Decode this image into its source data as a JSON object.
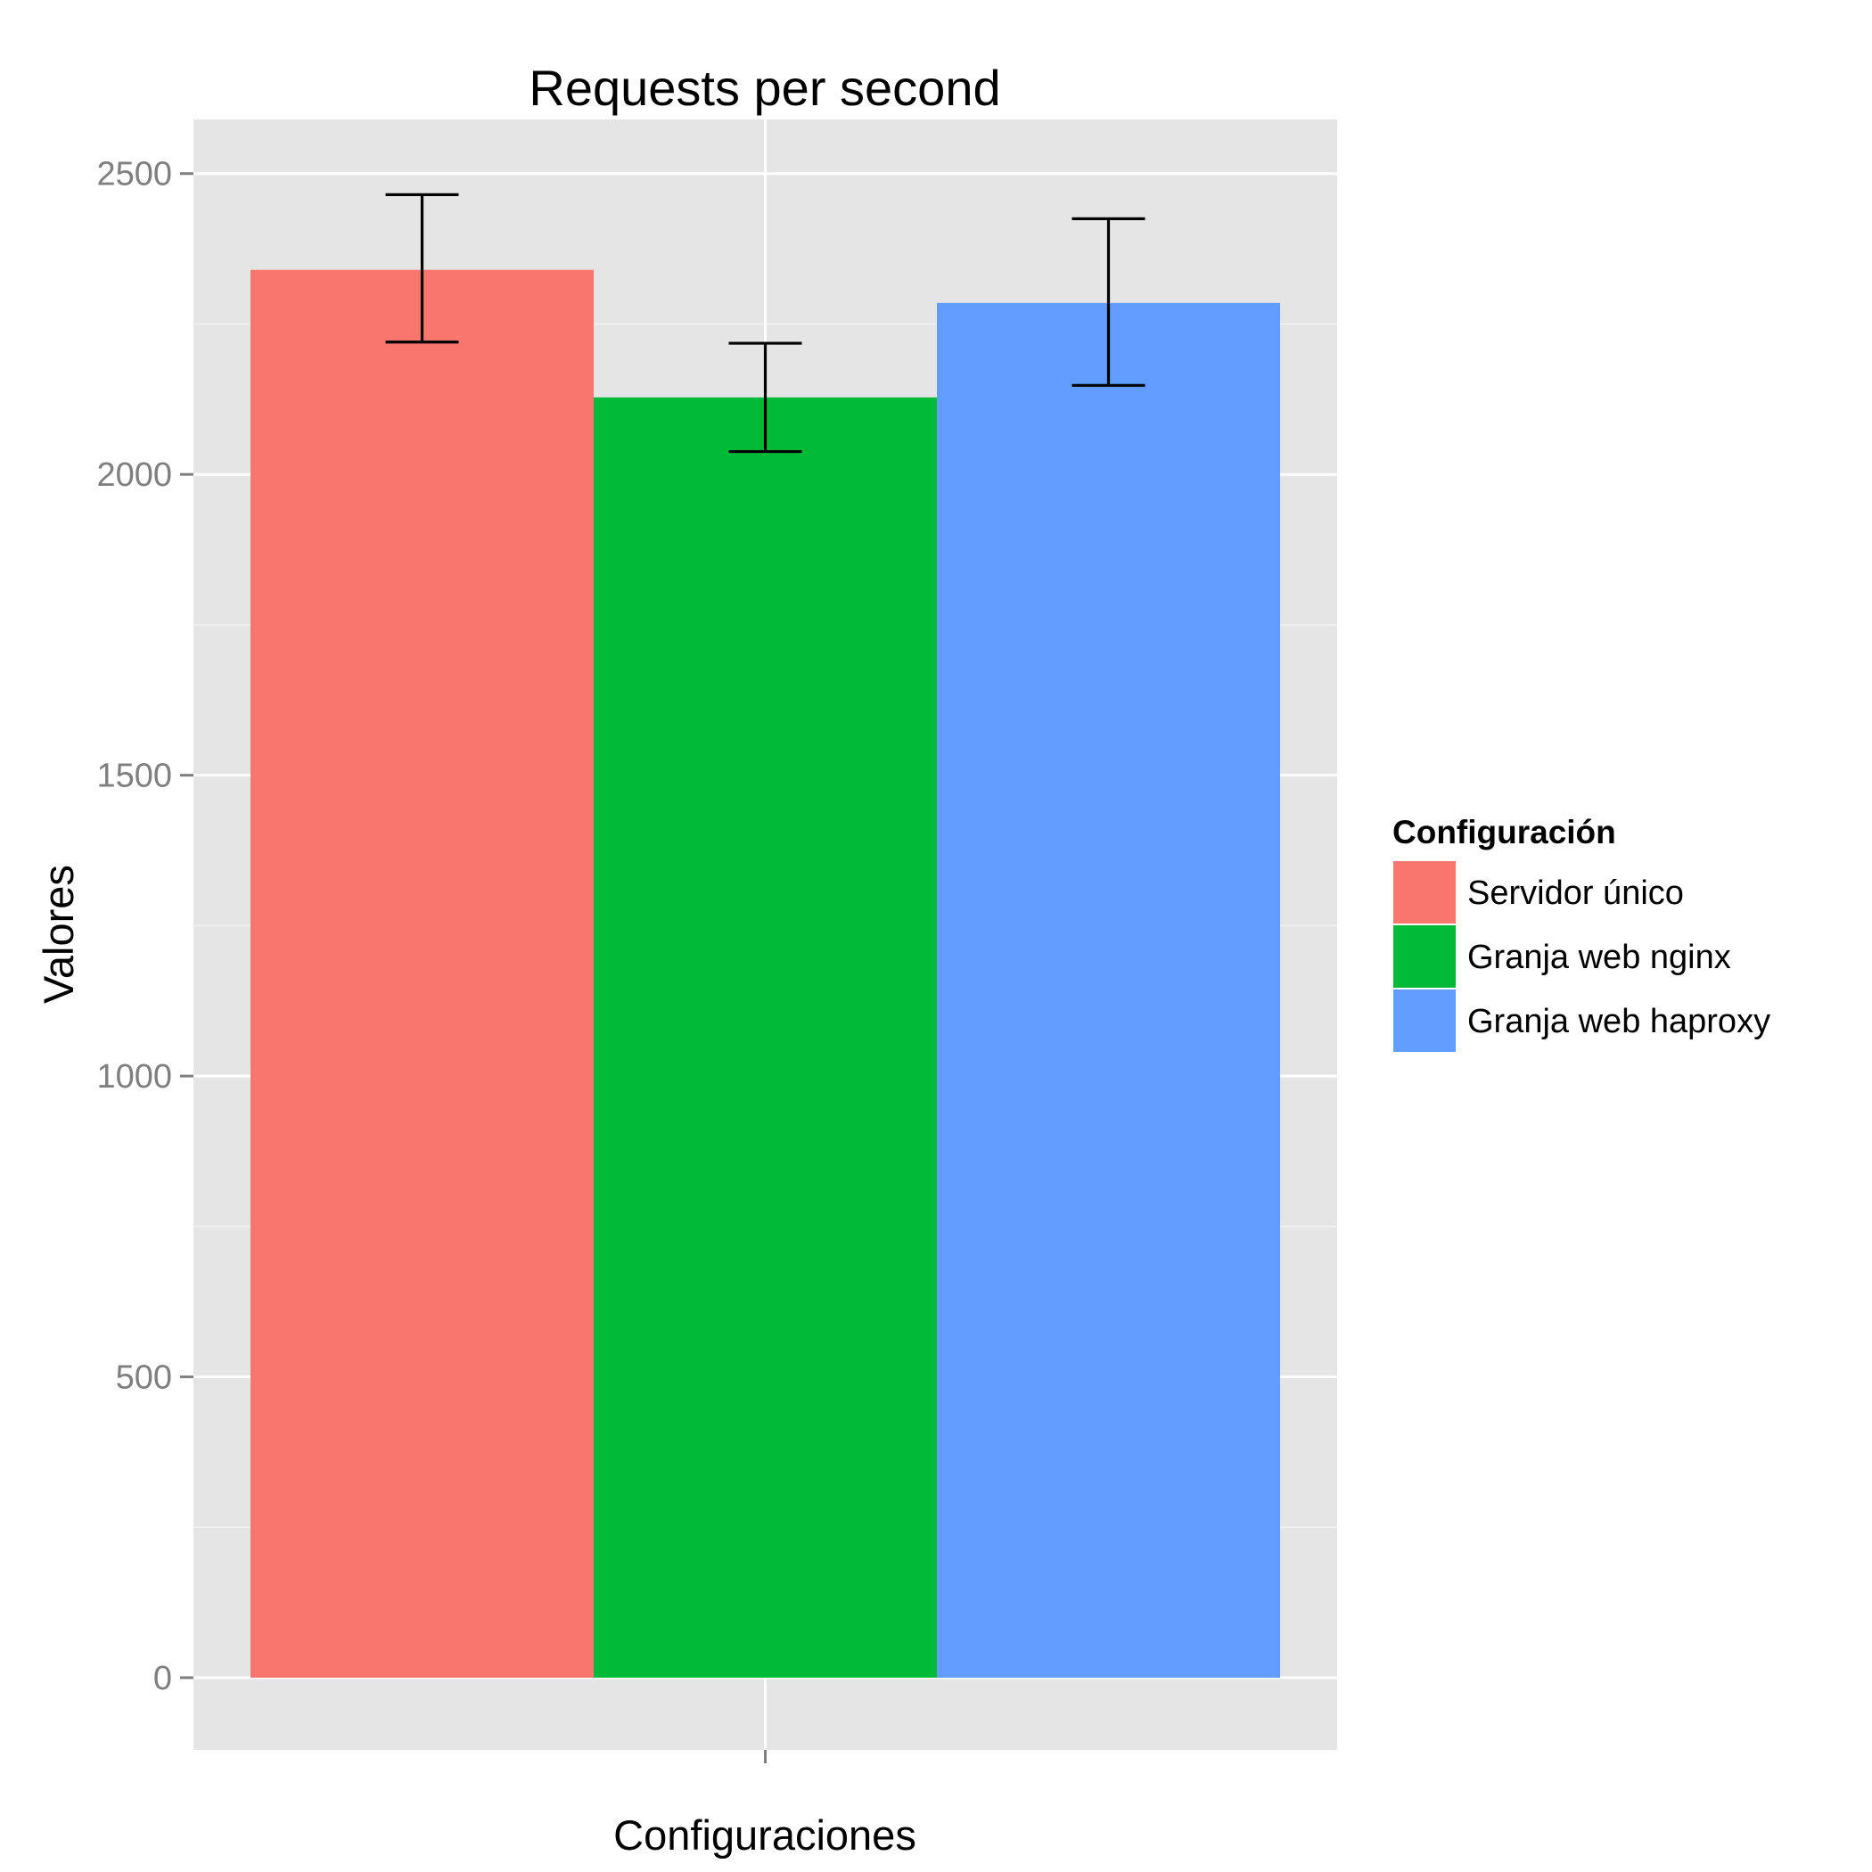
{
  "chart_data": {
    "type": "bar",
    "title": "Requests per second",
    "xlabel": "Configuraciones",
    "ylabel": "Valores",
    "ylim": [
      -120,
      2590
    ],
    "y_ticks": [
      0,
      500,
      1000,
      1500,
      2000,
      2500
    ],
    "grid": true,
    "legend": {
      "title": "Configuración",
      "placement": "right"
    },
    "series": [
      {
        "name": "Servidor único",
        "value": 2340,
        "error_low": 2220,
        "error_high": 2465,
        "color": "#F8766D"
      },
      {
        "name": "Granja web nginx",
        "value": 2128,
        "error_low": 2038,
        "error_high": 2218,
        "color": "#00BA38"
      },
      {
        "name": "Granja web haproxy",
        "value": 2285,
        "error_low": 2148,
        "error_high": 2425,
        "color": "#619CFF"
      }
    ]
  }
}
